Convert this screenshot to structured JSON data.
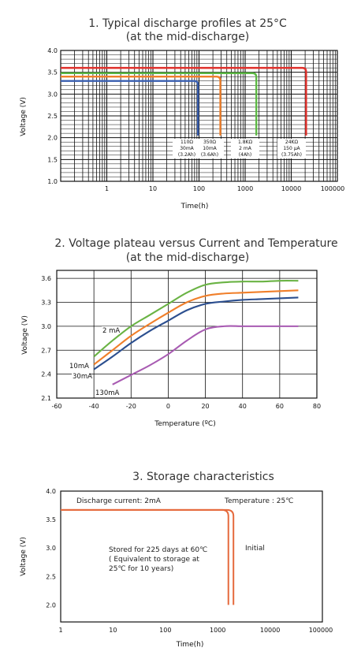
{
  "chart_data": [
    {
      "type": "line",
      "title": "1. Typical discharge profiles at 25°C",
      "subtitle": "(at  the mid-discharge)",
      "xlabel": "Time(h)",
      "ylabel": "Voltage (V)",
      "xscale": "log",
      "xlim": [
        0.1,
        100000
      ],
      "ylim": [
        1.0,
        4.0
      ],
      "x_ticks": [
        "1",
        "10",
        "100",
        "1000",
        "10000",
        "100000"
      ],
      "y_ticks": [
        "1.0",
        "1.5",
        "2.0",
        "2.5",
        "3.0",
        "3.5",
        "4.0"
      ],
      "grid": true,
      "series": [
        {
          "color": "#3a5fb0",
          "label_lines": [
            "110Ω",
            "30mA",
            "(3.2Ah)"
          ],
          "plateau_v": 3.3,
          "drop_time_h": 95
        },
        {
          "color": "#f07f2a",
          "label_lines": [
            "350Ω",
            "10mA",
            "(3.6Ah)"
          ],
          "plateau_v": 3.4,
          "drop_time_h": 290
        },
        {
          "color": "#5cb944",
          "label_lines": [
            "1.8KΩ",
            "2 mA",
            "(4Ah)"
          ],
          "plateau_v": 3.48,
          "drop_time_h": 1750
        },
        {
          "color": "#e0302b",
          "label_lines": [
            "24KΩ",
            "150 μA",
            "(3.75Ah)"
          ],
          "plateau_v": 3.6,
          "drop_time_h": 21000
        }
      ]
    },
    {
      "type": "line",
      "title": "2. Voltage plateau versus Current and Temperature",
      "subtitle": "(at the mid-discharge)",
      "xlabel": "Temperature (ºC)",
      "ylabel": "Voltage (V)",
      "xlim": [
        -60,
        80
      ],
      "ylim": [
        2.1,
        3.7
      ],
      "x_ticks": [
        "-60",
        "-40",
        "-20",
        "0",
        "20",
        "40",
        "60",
        "80"
      ],
      "y_ticks": [
        "2.1",
        "2.4",
        "2.7",
        "3.0",
        "3.3",
        "3.6"
      ],
      "grid": true,
      "series": [
        {
          "name": "2 mA",
          "color": "#6ab344",
          "x": [
            -40,
            -30,
            -20,
            -10,
            0,
            10,
            20,
            30,
            40,
            50,
            60,
            70
          ],
          "y": [
            2.62,
            2.82,
            3.0,
            3.14,
            3.28,
            3.42,
            3.52,
            3.55,
            3.56,
            3.56,
            3.57,
            3.57
          ]
        },
        {
          "name": "10mA",
          "color": "#f07f2a",
          "x": [
            -40,
            -30,
            -20,
            -10,
            0,
            10,
            20,
            30,
            40,
            50,
            60,
            70
          ],
          "y": [
            2.52,
            2.7,
            2.88,
            3.03,
            3.17,
            3.3,
            3.38,
            3.41,
            3.42,
            3.43,
            3.44,
            3.45
          ]
        },
        {
          "name": "30mA",
          "color": "#2c4f8f",
          "x": [
            -40,
            -30,
            -20,
            -10,
            0,
            10,
            20,
            30,
            40,
            50,
            60,
            70
          ],
          "y": [
            2.46,
            2.62,
            2.79,
            2.94,
            3.07,
            3.2,
            3.28,
            3.31,
            3.33,
            3.34,
            3.35,
            3.36
          ]
        },
        {
          "name": "130mA",
          "color": "#a85bb2",
          "x": [
            -30,
            -20,
            -10,
            0,
            10,
            20,
            30,
            40,
            50,
            60,
            70
          ],
          "y": [
            2.27,
            2.39,
            2.51,
            2.65,
            2.82,
            2.96,
            3.0,
            3.0,
            3.0,
            3.0,
            3.0
          ]
        }
      ]
    },
    {
      "type": "line",
      "title": "3. Storage characteristics",
      "xlabel": "Time(h)",
      "ylabel": "Voltage (V)",
      "xscale": "log",
      "xlim": [
        1,
        100000
      ],
      "ylim": [
        1.7,
        4.0
      ],
      "x_ticks": [
        "1",
        "10",
        "100",
        "1000",
        "10000",
        "100000"
      ],
      "y_ticks": [
        "2.0",
        "2.5",
        "3.0",
        "3.5",
        "4.0"
      ],
      "grid": false,
      "annotations": {
        "current": "Discharge current: 2mA",
        "temperature": "Temperature : 25℃",
        "stored_lines": [
          "Stored for 225 days at 60℃",
          "( Equivalent to storage at",
          "25℃ for 10 years)"
        ],
        "initial": "Initial"
      },
      "series": [
        {
          "color": "#e56a3d",
          "plateau_v": 3.67,
          "drop_time_h": 1600,
          "end_v": 2.0
        },
        {
          "color": "#e56a3d",
          "plateau_v": 3.67,
          "drop_time_h": 2000,
          "end_v": 2.0
        }
      ]
    }
  ]
}
